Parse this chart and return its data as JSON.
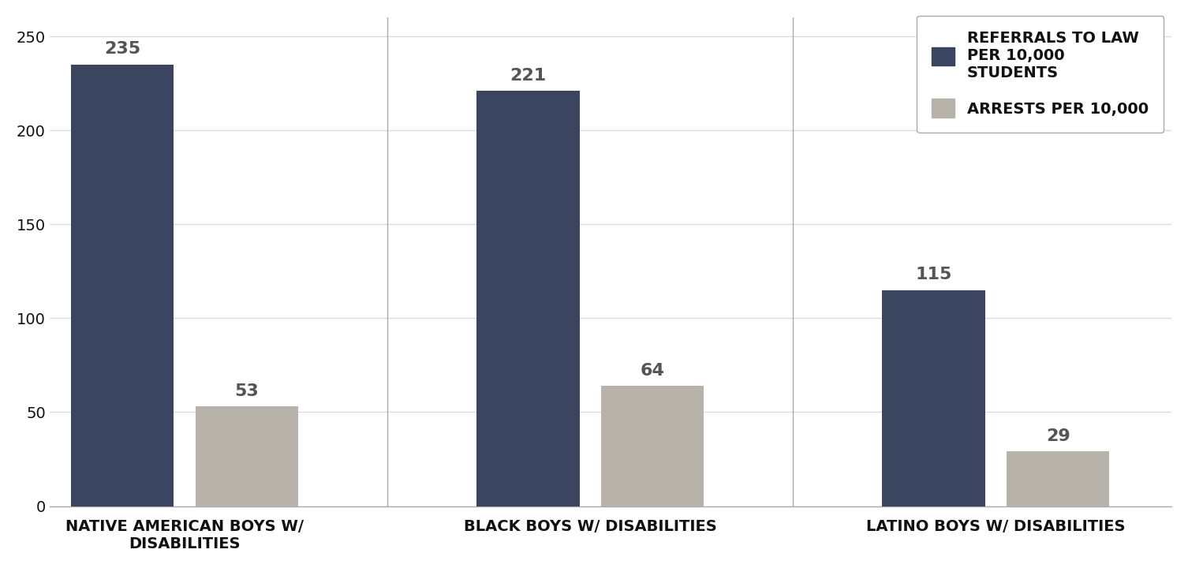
{
  "categories": [
    "NATIVE AMERICAN BOYS W/\nDISABILITIES",
    "BLACK BOYS W/ DISABILITIES",
    "LATINO BOYS W/ DISABILITIES"
  ],
  "referrals": [
    235,
    221,
    115
  ],
  "arrests": [
    53,
    64,
    29
  ],
  "referral_color": "#3b4560",
  "arrest_color": "#b8b3aa",
  "bar_label_color": "#555555",
  "ylim": [
    0,
    260
  ],
  "yticks": [
    0,
    50,
    100,
    150,
    200,
    250
  ],
  "legend_referral_label": "REFERRALS TO LAW\nPER 10,000\nSTUDENTS",
  "legend_arrest_label": "ARRESTS PER 10,000",
  "bar_width": 0.38,
  "background_color": "#ffffff",
  "label_fontsize": 14,
  "tick_fontsize": 14,
  "legend_fontsize": 14,
  "value_fontsize": 16
}
